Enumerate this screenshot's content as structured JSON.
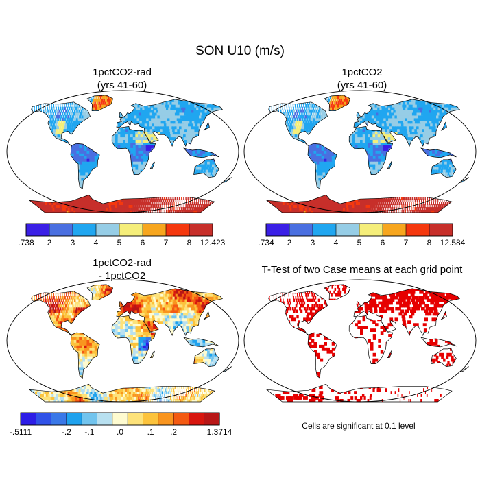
{
  "figure": {
    "title": "SON U10 (m/s)",
    "significance_note": "Cells are significant at 0.1 level"
  },
  "panels": [
    {
      "id": "1pctCO2-rad",
      "title_line1": "1pctCO2-rad",
      "title_line2": "(yrs 41-60)",
      "colorbar": {
        "tick_labels": [
          ".738",
          "2",
          "3",
          "4",
          "5",
          "6",
          "7",
          "8",
          "12.423"
        ],
        "colors": [
          "#3a1fe6",
          "#4a6fe0",
          "#20a6f0",
          "#96cde6",
          "#f5ee7a",
          "#f7a61e",
          "#f5380e",
          "#c72f2a"
        ]
      }
    },
    {
      "id": "1pctCO2",
      "title_line1": "1pctCO2",
      "title_line2": "(yrs 41-60)",
      "colorbar": {
        "tick_labels": [
          ".734",
          "2",
          "3",
          "4",
          "5",
          "6",
          "7",
          "8",
          "12.584"
        ],
        "colors": [
          "#3a1fe6",
          "#4a6fe0",
          "#20a6f0",
          "#96cde6",
          "#f5ee7a",
          "#f7a61e",
          "#f5380e",
          "#c72f2a"
        ]
      }
    },
    {
      "id": "difference",
      "title_line1": "1pctCO2-rad",
      "title_line2": "- 1pctCO2",
      "colorbar": {
        "tick_labels": [
          "-.5111",
          "-.2",
          "-.1",
          ".0",
          ".1",
          ".2",
          "1.3714"
        ],
        "colors": [
          "#2d1de6",
          "#3052e8",
          "#3a78e8",
          "#1fa2ee",
          "#72c4ee",
          "#b8e0f0",
          "#fefbd0",
          "#fde27a",
          "#fcc33c",
          "#f9951f",
          "#f45a12",
          "#d8160e",
          "#b81616"
        ]
      }
    },
    {
      "id": "ttest",
      "title_line1": "T-Test of two Case means at each grid point",
      "title_line2": ""
    }
  ]
}
